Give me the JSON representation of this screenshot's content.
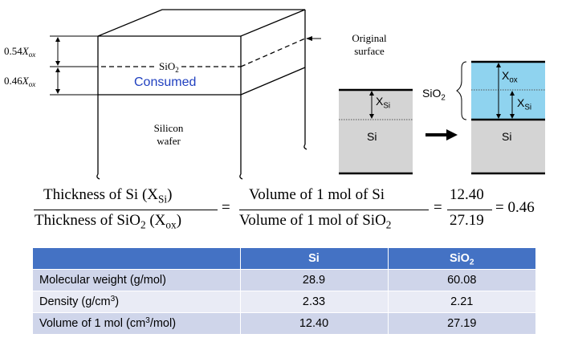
{
  "left_diagram": {
    "dim_top": "0.54",
    "dim_bottom": "0.46",
    "dim_var": "X",
    "dim_var_sub": "ox",
    "original_surface_line1": "Original",
    "original_surface_line2": "surface",
    "sio2_label": "SiO",
    "sio2_sub": "2",
    "consumed_label": "Consumed",
    "wafer_line1": "Silicon",
    "wafer_line2": "wafer"
  },
  "right_diagram": {
    "xsi_label": "X",
    "xsi_sub": "Si",
    "si_label_left": "Si",
    "si_label_right": "Si",
    "sio2_label": "SiO",
    "sio2_sub": "2",
    "xox_label": "X",
    "xox_sub": "ox",
    "xsi_label_right": "X",
    "xsi_sub_right": "Si",
    "colors": {
      "sio2": "#8fd3ef",
      "si": "#d4d4d4"
    }
  },
  "equation": {
    "num1_pre": "Thickness of Si (X",
    "num1_sub": "Si",
    "num1_post": ")",
    "den1_pre": "Thickness of SiO",
    "den1_sub": "2",
    "den1_mid": " (X",
    "den1_sub2": "ox",
    "den1_post": ")",
    "eq1": "=",
    "num2": "Volume of 1 mol of Si",
    "den2_pre": "Volume of 1 mol of SiO",
    "den2_sub": "2",
    "eq2": "=",
    "num3": "12.40",
    "den3": "27.19",
    "result": "= 0.46"
  },
  "table": {
    "headers": [
      "",
      "Si",
      "SiO",
      "2"
    ],
    "rows": [
      {
        "label": "Molecular weight (g/mol)",
        "label_sup": "",
        "label_post": "",
        "si": "28.9",
        "sio2": "60.08"
      },
      {
        "label": "Density (g/cm",
        "label_sup": "3",
        "label_post": ")",
        "si": "2.33",
        "sio2": "2.21"
      },
      {
        "label": "Volume of 1 mol (cm",
        "label_sup": "3",
        "label_post": "/mol)",
        "si": "12.40",
        "sio2": "27.19"
      }
    ],
    "header_color": "#4472c4",
    "row_colors": [
      "#cfd5ea",
      "#e9ebf5"
    ]
  }
}
